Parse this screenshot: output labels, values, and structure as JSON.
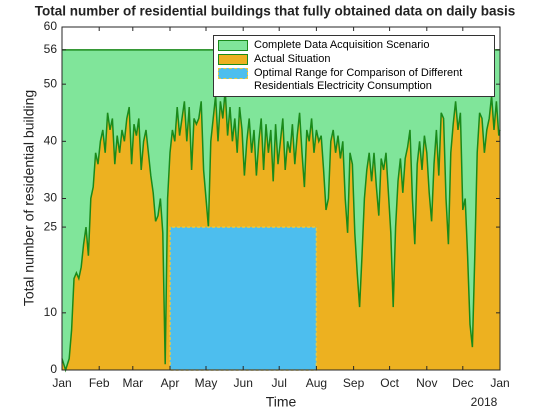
{
  "chart_data": {
    "type": "area",
    "title": "Total number of residential buildings that fully obtained data on daily basis",
    "xlabel": "Time",
    "ylabel": "Total number of residential building",
    "annotation": "2018",
    "xlim": [
      0,
      365
    ],
    "xticks": [
      {
        "value": 0,
        "label": "Jan"
      },
      {
        "value": 31,
        "label": "Feb"
      },
      {
        "value": 59,
        "label": "Mar"
      },
      {
        "value": 90,
        "label": "Apr"
      },
      {
        "value": 120,
        "label": "May"
      },
      {
        "value": 151,
        "label": "Jun"
      },
      {
        "value": 181,
        "label": "Jul"
      },
      {
        "value": 212,
        "label": "Aug"
      },
      {
        "value": 243,
        "label": "Sep"
      },
      {
        "value": 273,
        "label": "Oct"
      },
      {
        "value": 304,
        "label": "Nov"
      },
      {
        "value": 334,
        "label": "Dec"
      },
      {
        "value": 365,
        "label": "Jan"
      }
    ],
    "ylim": [
      0,
      60
    ],
    "yticks": [
      0,
      10,
      25,
      30,
      40,
      50,
      56,
      60
    ],
    "legend": "upper right",
    "series": [
      {
        "name": "Complete Data Acquisition Scenario",
        "color": "#80e59a",
        "edge_color": "#1a8a1a",
        "x": [
          0,
          365
        ],
        "values": [
          56,
          56
        ]
      },
      {
        "name": "Actual Situation",
        "color": "#edb120",
        "edge_color": "#1a8a1a",
        "x": [
          0,
          3,
          6,
          8,
          10,
          12,
          14,
          16,
          18,
          20,
          22,
          24,
          26,
          28,
          30,
          32,
          34,
          36,
          38,
          40,
          42,
          44,
          46,
          48,
          50,
          52,
          54,
          56,
          58,
          60,
          62,
          64,
          66,
          68,
          70,
          72,
          74,
          76,
          78,
          80,
          82,
          84,
          86,
          88,
          90,
          92,
          94,
          96,
          98,
          100,
          102,
          104,
          106,
          108,
          110,
          112,
          114,
          116,
          118,
          120,
          122,
          124,
          126,
          128,
          130,
          132,
          134,
          136,
          138,
          140,
          142,
          144,
          146,
          148,
          150,
          152,
          154,
          156,
          158,
          160,
          162,
          164,
          166,
          168,
          170,
          172,
          174,
          176,
          178,
          180,
          182,
          184,
          186,
          188,
          190,
          192,
          194,
          196,
          198,
          200,
          202,
          204,
          206,
          208,
          210,
          212,
          214,
          216,
          218,
          220,
          222,
          224,
          226,
          228,
          230,
          232,
          234,
          236,
          238,
          240,
          242,
          244,
          246,
          248,
          250,
          252,
          254,
          256,
          258,
          260,
          262,
          264,
          266,
          268,
          270,
          272,
          274,
          276,
          278,
          280,
          282,
          284,
          286,
          288,
          290,
          292,
          294,
          296,
          298,
          300,
          302,
          304,
          306,
          308,
          310,
          312,
          314,
          316,
          318,
          320,
          322,
          324,
          326,
          328,
          330,
          332,
          334,
          336,
          338,
          340,
          342,
          344,
          346,
          348,
          350,
          352,
          354,
          356,
          358,
          360,
          362,
          364,
          365
        ],
        "values": [
          2,
          0,
          2,
          7,
          16,
          17,
          16,
          18,
          22,
          25,
          20,
          30,
          32,
          38,
          36,
          40,
          42,
          38,
          45,
          42,
          44,
          36,
          41,
          38,
          42,
          40,
          44,
          46,
          36,
          43,
          41,
          44,
          35,
          40,
          42,
          38,
          34,
          31,
          26,
          27,
          30,
          24,
          1,
          30,
          38,
          42,
          40,
          46,
          41,
          44,
          47,
          40,
          46,
          35,
          44,
          43,
          44,
          47,
          35,
          30,
          25,
          40,
          44,
          48,
          40,
          47,
          44,
          49,
          41,
          46,
          40,
          44,
          38,
          46,
          42,
          34,
          40,
          44,
          38,
          42,
          34,
          40,
          44,
          35,
          43,
          38,
          42,
          33,
          43,
          36,
          40,
          44,
          35,
          40,
          38,
          43,
          36,
          41,
          45,
          38,
          32,
          42,
          40,
          44,
          38,
          42,
          40,
          41,
          35,
          28,
          30,
          40,
          42,
          38,
          41,
          37,
          40,
          30,
          24,
          38,
          36,
          24,
          17,
          11,
          20,
          30,
          35,
          38,
          33,
          38,
          32,
          27,
          37,
          35,
          38,
          31,
          24,
          11,
          25,
          33,
          37,
          31,
          37,
          39,
          42,
          30,
          22,
          36,
          40,
          35,
          41,
          38,
          31,
          26,
          36,
          42,
          34,
          45,
          44,
          30,
          22,
          38,
          43,
          47,
          42,
          45,
          28,
          30,
          20,
          8,
          4,
          20,
          38,
          45,
          44,
          38,
          42,
          44,
          48,
          42,
          47,
          41,
          42
        ]
      },
      {
        "name": "Optimal Range for Comparison of Different Residentials Electricity Consumption",
        "color": "#4dbeee",
        "edge_color": "#e8c840",
        "dashed": true,
        "x": [
          90,
          212
        ],
        "values": [
          25,
          25
        ]
      }
    ]
  }
}
